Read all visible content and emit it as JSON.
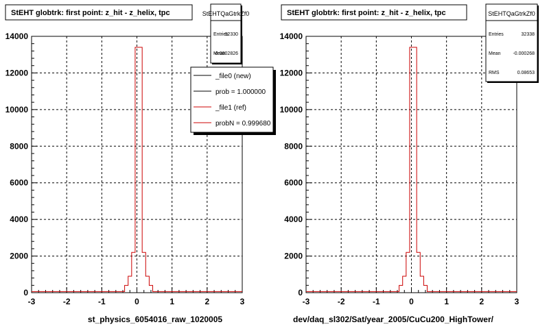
{
  "chart_data": [
    {
      "type": "histogram",
      "title": "StEHT globtrk: first point: z_hit - z_helix, tpc",
      "xlabel": "st_physics_6054016_raw_1020005",
      "ylabel": "",
      "xlim": [
        -3,
        3
      ],
      "ylim": [
        0,
        14000
      ],
      "xticks": [
        "-3",
        "-2",
        "-1",
        "0",
        "1",
        "2",
        "3"
      ],
      "yticks": [
        "0",
        "2000",
        "4000",
        "6000",
        "8000",
        "10000",
        "12000",
        "14000"
      ],
      "grid": true,
      "stats": {
        "name": "StEHTQaGtrkZf0",
        "rows": [
          {
            "label": "Entries",
            "value": "32330"
          },
          {
            "label": "Mean",
            "value": "-0.0002826"
          }
        ]
      },
      "legend": [
        {
          "label": "_file0 (new)",
          "color": "#000000"
        },
        {
          "label": "prob = 1.000000",
          "color": "#000000"
        },
        {
          "label": "_file1 (ref)",
          "color": "#cc0000"
        },
        {
          "label": "probN = 0.999680",
          "color": "#cc0000"
        }
      ],
      "series": [
        {
          "color": "#cc0000",
          "bin_edges": [
            -0.45,
            -0.35,
            -0.25,
            -0.15,
            -0.05,
            0.05,
            0.15,
            0.25,
            0.35,
            0.45
          ],
          "counts": [
            60,
            400,
            900,
            2200,
            13400,
            13400,
            2200,
            900,
            400
          ]
        }
      ],
      "baseline": 60
    },
    {
      "type": "histogram",
      "title": "StEHT globtrk: first point: z_hit - z_helix, tpc",
      "xlabel": "dev/daq_sl302/Sat/year_2005/CuCu200_HighTower/",
      "ylabel": "",
      "xlim": [
        -3,
        3
      ],
      "ylim": [
        0,
        14000
      ],
      "xticks": [
        "-3",
        "-2",
        "-1",
        "0",
        "1",
        "2",
        "3"
      ],
      "yticks": [
        "0",
        "2000",
        "4000",
        "6000",
        "8000",
        "10000",
        "12000",
        "14000"
      ],
      "grid": true,
      "stats": {
        "name": "StEHTQaGtrkZf0",
        "rows": [
          {
            "label": "Entries",
            "value": "32338"
          },
          {
            "label": "Mean",
            "value": "-0.000268"
          },
          {
            "label": "RMS",
            "value": "0.08653"
          }
        ]
      },
      "series": [
        {
          "color": "#cc0000",
          "bin_edges": [
            -0.45,
            -0.35,
            -0.25,
            -0.15,
            -0.05,
            0.05,
            0.15,
            0.25,
            0.35,
            0.45
          ],
          "counts": [
            60,
            400,
            900,
            2200,
            13400,
            13400,
            2200,
            900,
            400
          ]
        }
      ],
      "baseline": 60
    }
  ]
}
